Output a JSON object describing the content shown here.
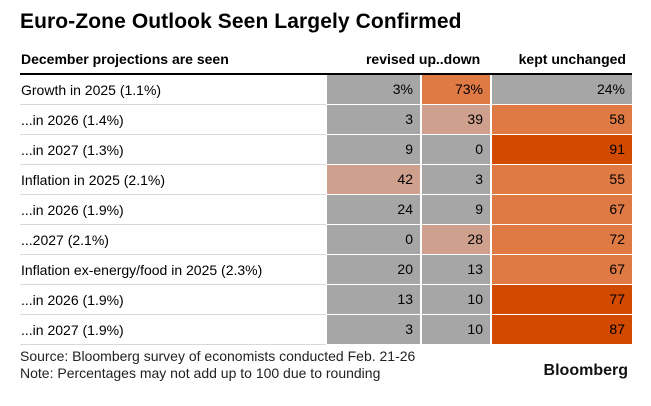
{
  "title": "Euro-Zone Outlook Seen Largely Confirmed",
  "chart_data": {
    "type": "table",
    "title": "Euro-Zone Outlook Seen Largely Confirmed",
    "columns": [
      "December projections are seen",
      "revised up",
      "...down",
      "kept unchanged"
    ],
    "rows": [
      {
        "label": "Growth in 2025 (1.1%)",
        "up": "3%",
        "down": "73%",
        "kept": "24%"
      },
      {
        "label": "...in 2026 (1.4%)",
        "up": "3",
        "down": "39",
        "kept": "58"
      },
      {
        "label": "...in 2027 (1.3%)",
        "up": "9",
        "down": "0",
        "kept": "91"
      },
      {
        "label": "Inflation in 2025 (2.1%)",
        "up": "42",
        "down": "3",
        "kept": "55"
      },
      {
        "label": "...in 2026 (1.9%)",
        "up": "24",
        "down": "9",
        "kept": "67"
      },
      {
        "label": "...2027 (2.1%)",
        "up": "0",
        "down": "28",
        "kept": "72"
      },
      {
        "label": "Inflation ex-energy/food in 2025 (2.3%)",
        "up": "20",
        "down": "13",
        "kept": "67"
      },
      {
        "label": "...in 2026 (1.9%)",
        "up": "13",
        "down": "10",
        "kept": "77"
      },
      {
        "label": "...in 2027 (1.9%)",
        "up": "3",
        "down": "10",
        "kept": "87"
      }
    ],
    "color_scale": {
      "low": "#a6a6a6",
      "mid_light": "#cfa08e",
      "mid": "#e07a45",
      "high": "#d24a00"
    }
  },
  "footer": {
    "source": "Source: Bloomberg survey of economists conducted Feb. 21-26",
    "note": "Note: Percentages may not add up to 100 due to rounding"
  },
  "brand": "Bloomberg"
}
